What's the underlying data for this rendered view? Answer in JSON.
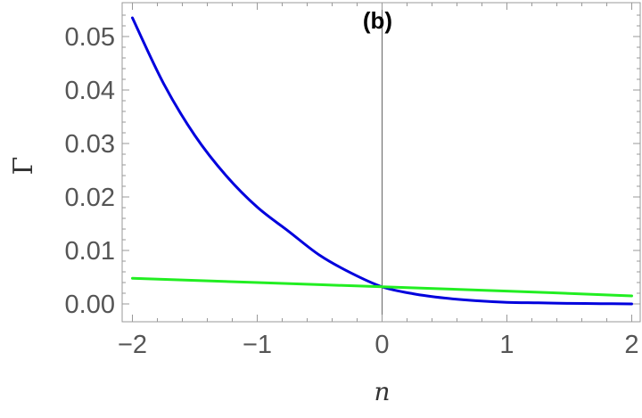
{
  "chart_data": {
    "type": "line",
    "title": "(b)",
    "xlabel": "n",
    "ylabel": "Γ",
    "xlim": [
      -2,
      2
    ],
    "ylim": [
      -0.0025,
      0.056
    ],
    "x_ticks": [
      -2,
      -1,
      0,
      1,
      2
    ],
    "x_tick_labels": [
      "−2",
      "−1",
      "0",
      "1",
      "2"
    ],
    "y_ticks": [
      0.0,
      0.01,
      0.02,
      0.03,
      0.04,
      0.05
    ],
    "y_tick_labels": [
      "0.00",
      "0.01",
      "0.02",
      "0.03",
      "0.04",
      "0.05"
    ],
    "grid": false,
    "vertical_reference_line_x": 0,
    "series": [
      {
        "color": "#0000dd",
        "x": [
          -2.0,
          -1.75,
          -1.5,
          -1.25,
          -1.0,
          -0.75,
          -0.5,
          -0.25,
          0.0,
          0.25,
          0.5,
          0.75,
          1.0,
          1.25,
          1.5,
          1.75,
          2.0
        ],
        "y": [
          0.0535,
          0.0412,
          0.0315,
          0.024,
          0.0181,
          0.0136,
          0.0091,
          0.0058,
          0.0032,
          0.0019,
          0.0011,
          0.0006,
          0.0003,
          0.0002,
          0.0001,
          5e-05,
          0.0
        ]
      },
      {
        "color": "#22ee22",
        "x": [
          -2.0,
          -1.0,
          0.0,
          1.0,
          2.0
        ],
        "y": [
          0.0048,
          0.004,
          0.0032,
          0.0024,
          0.0015
        ]
      }
    ]
  }
}
